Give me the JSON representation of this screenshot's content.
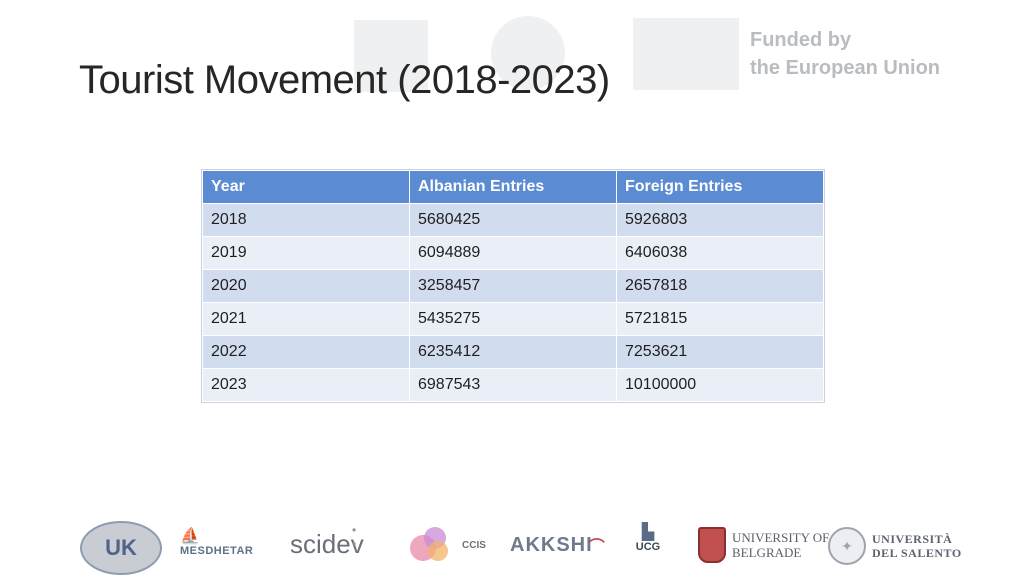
{
  "slide": {
    "title": "Tourist Movement (2018-2023)",
    "funding_line1": "Funded by",
    "funding_line2": "the European Union"
  },
  "table": {
    "headers": [
      "Year",
      "Albanian Entries",
      "Foreign Entries"
    ],
    "rows": [
      [
        "2018",
        "5680425",
        "5926803"
      ],
      [
        "2019",
        "6094889",
        "6406038"
      ],
      [
        "2020",
        "3258457",
        "2657818"
      ],
      [
        "2021",
        "5435275",
        "5721815"
      ],
      [
        "2022",
        "6235412",
        "7253621"
      ],
      [
        "2023",
        "6987543",
        "10100000"
      ]
    ]
  },
  "footer_logos": {
    "uk": "UK",
    "mesdhetar": "MESDHETAR",
    "scidev": "scidev",
    "ccis": "CCIS",
    "akkshi": "AKKSHI",
    "ucg": "UCG",
    "belgrade_line1": "UNIVERSITY OF",
    "belgrade_line2": "BELGRADE",
    "salento_line1": "UNIVERSITÀ",
    "salento_line2": "DEL SALENTO"
  },
  "colors": {
    "header_bg": "#5b8bd2",
    "row_odd": "#d2dcef",
    "row_even": "#e9eef7"
  }
}
